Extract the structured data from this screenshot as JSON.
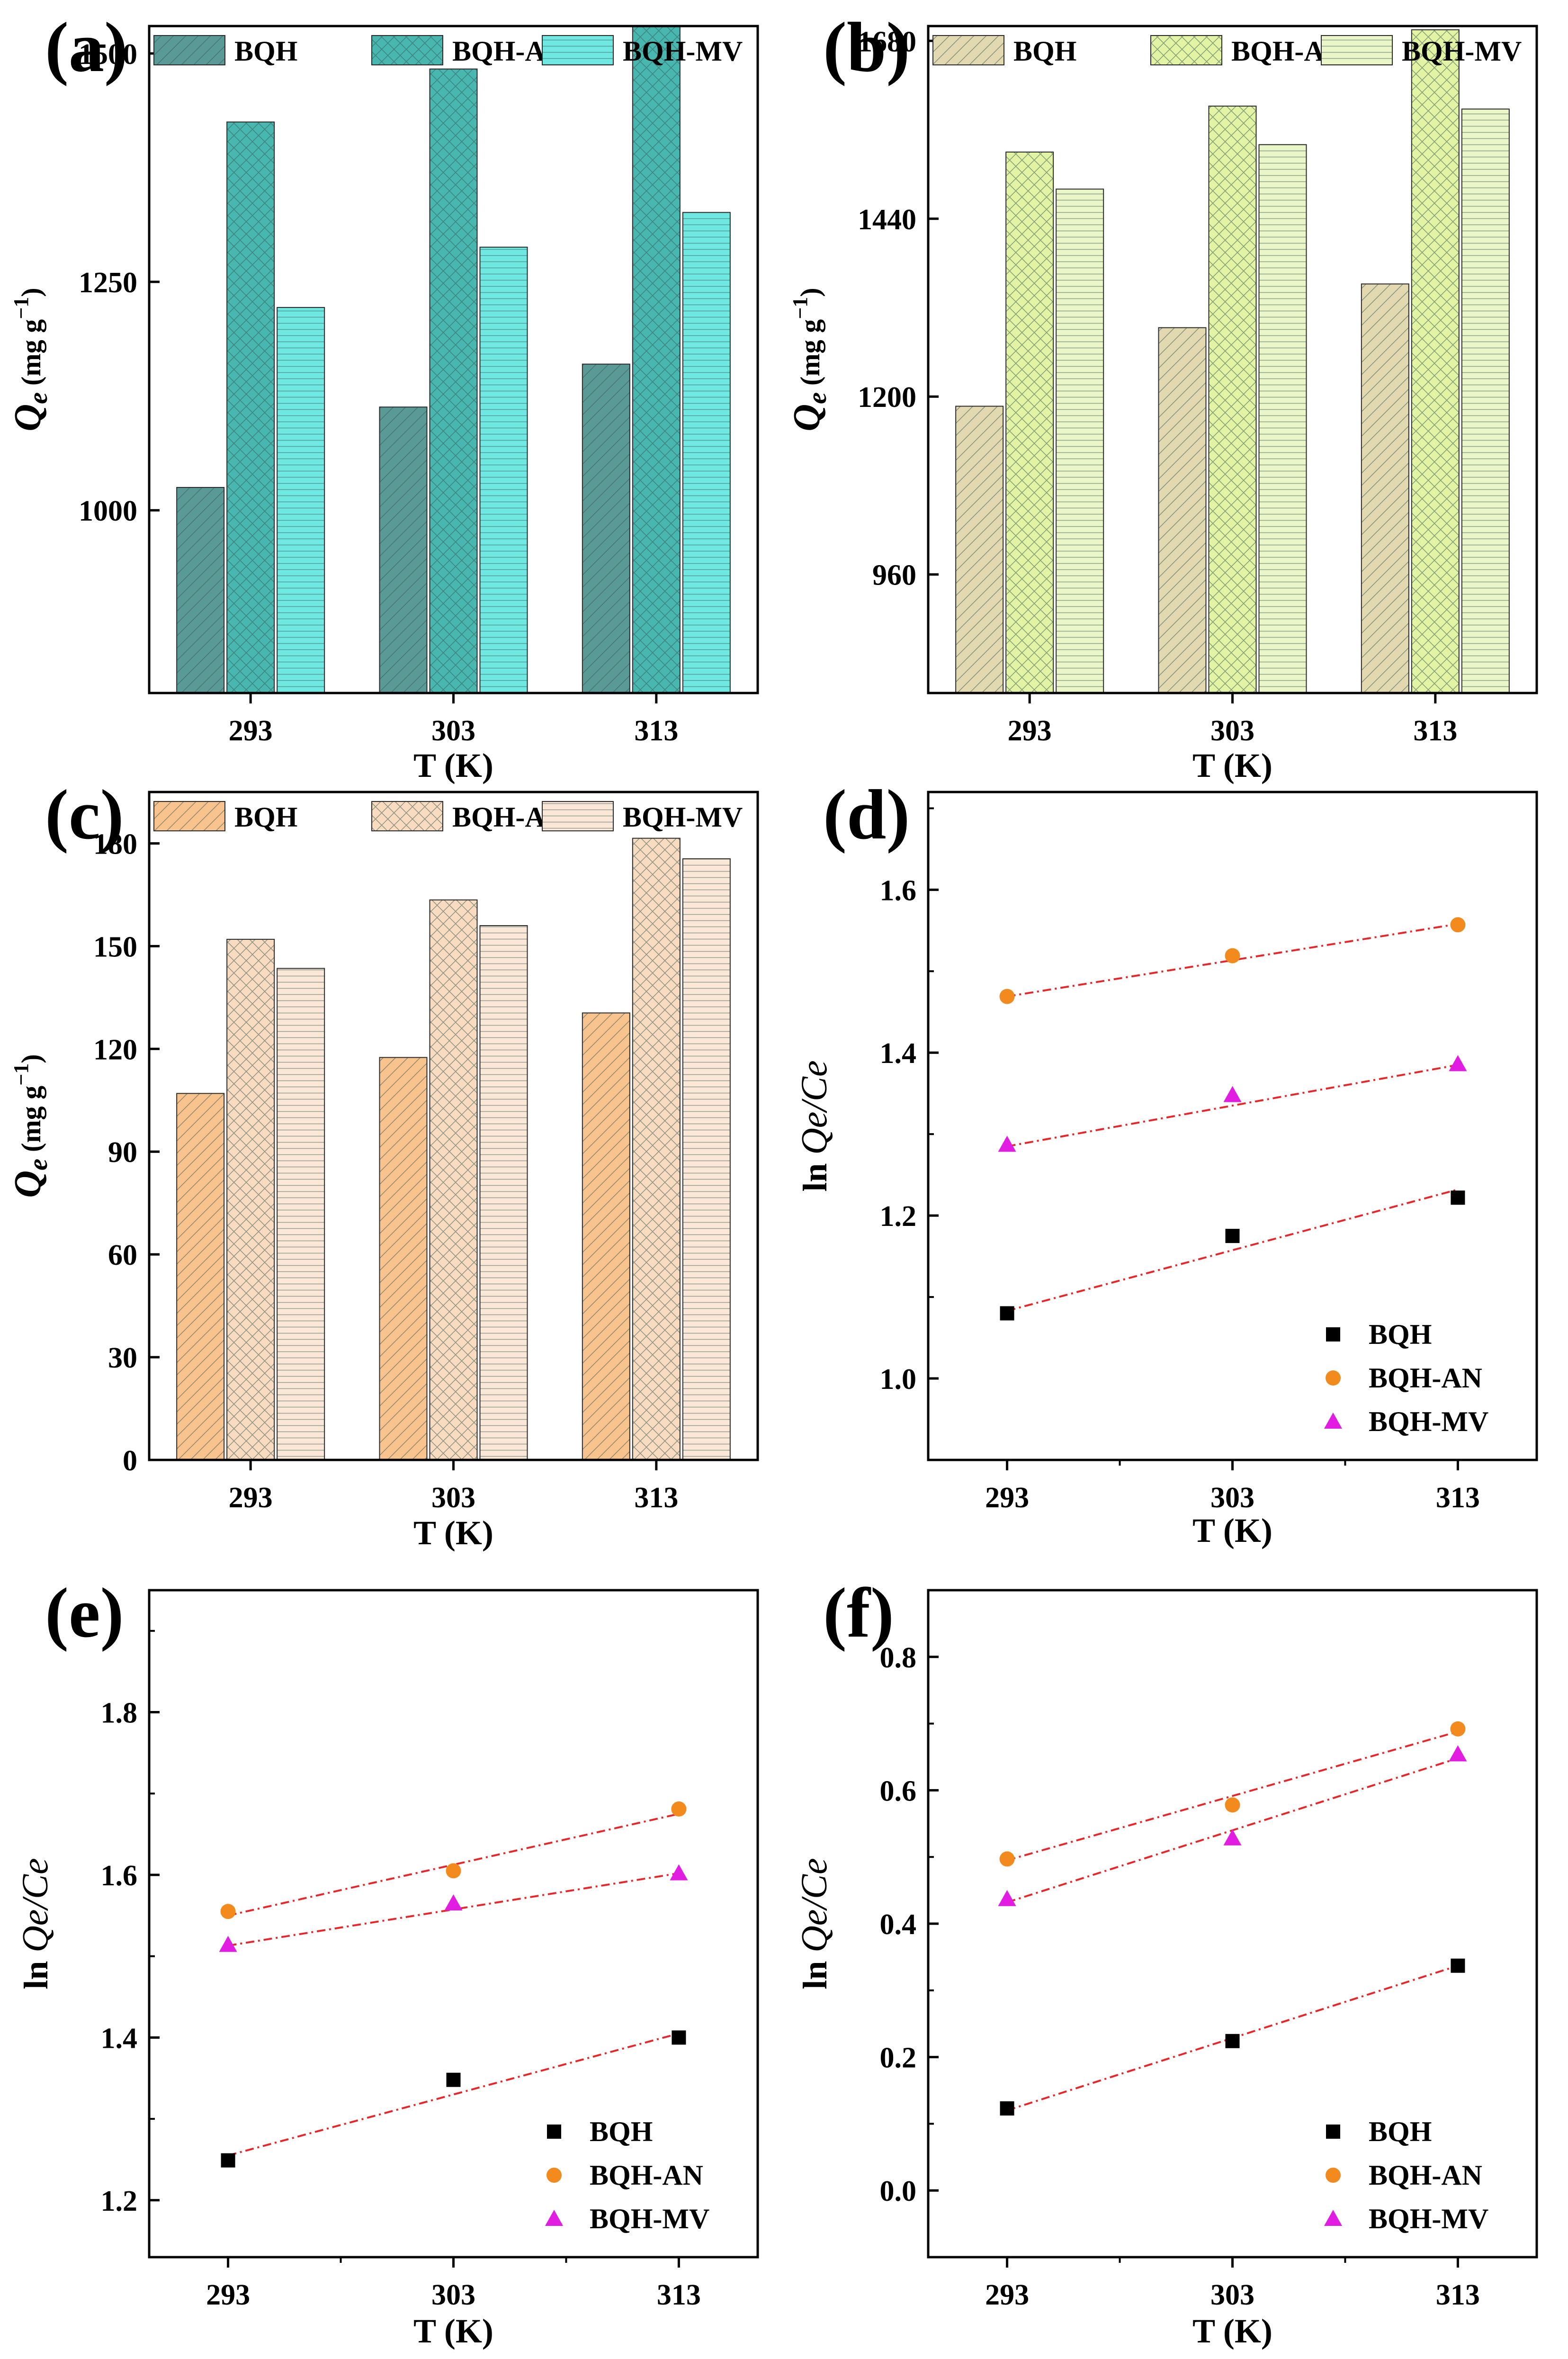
{
  "figure": "Six-panel adsorption thermodynamics figure",
  "chart_data": [
    {
      "id": "a",
      "type": "bar",
      "label": "(a)",
      "title": "",
      "xlabel": "T (K)",
      "ylabel": "Qe (mg g-1)",
      "ylabel_main": "Q",
      "ylabel_sub": "e",
      "ylabel_unit": "(mg g",
      "ylabel_exp": "−1",
      "ylabel_close": ")",
      "categories": [
        "293",
        "303",
        "313"
      ],
      "ylim": [
        800,
        1530
      ],
      "yticks": [
        1000,
        1250,
        1500
      ],
      "legend_position": "top",
      "series": [
        {
          "name": "BQH",
          "values": [
            1025,
            1113,
            1160
          ],
          "pattern": "diag",
          "fill": "#5a9a96"
        },
        {
          "name": "BQH-AN",
          "values": [
            1425,
            1483,
            1530
          ],
          "pattern": "cross",
          "fill": "#48b7b0"
        },
        {
          "name": "BQH-MV",
          "values": [
            1222,
            1288,
            1326
          ],
          "pattern": "horiz",
          "fill": "#6ee8e0"
        }
      ]
    },
    {
      "id": "b",
      "type": "bar",
      "label": "(b)",
      "title": "",
      "xlabel": "T (K)",
      "ylabel": "Qe (mg g-1)",
      "ylabel_main": "Q",
      "ylabel_sub": "e",
      "ylabel_unit": "(mg g",
      "ylabel_exp": "−1",
      "ylabel_close": ")",
      "categories": [
        "293",
        "303",
        "313"
      ],
      "ylim": [
        800,
        1700
      ],
      "yticks": [
        960,
        1200,
        1440,
        1680
      ],
      "legend_position": "top",
      "series": [
        {
          "name": "BQH",
          "values": [
            1187,
            1293,
            1352
          ],
          "pattern": "diag",
          "fill": "#e3d9b0"
        },
        {
          "name": "BQH-AN",
          "values": [
            1530,
            1592,
            1695
          ],
          "pattern": "cross",
          "fill": "#e3f3a4"
        },
        {
          "name": "BQH-MV",
          "values": [
            1480,
            1540,
            1588
          ],
          "pattern": "horiz",
          "fill": "#eaf6c8"
        }
      ]
    },
    {
      "id": "c",
      "type": "bar",
      "label": "(c)",
      "title": "",
      "xlabel": "T (K)",
      "ylabel": "Qe (mg g-1)",
      "ylabel_main": "Q",
      "ylabel_sub": "e",
      "ylabel_unit": "(mg g",
      "ylabel_exp": "−1",
      "ylabel_close": ")",
      "categories": [
        "293",
        "303",
        "313"
      ],
      "ylim": [
        0,
        195
      ],
      "yticks": [
        0,
        30,
        60,
        90,
        120,
        150,
        180
      ],
      "legend_position": "top",
      "series": [
        {
          "name": "BQH",
          "values": [
            107,
            117.5,
            130.5
          ],
          "pattern": "diag",
          "fill": "#f9c38e"
        },
        {
          "name": "BQH-AN",
          "values": [
            152,
            163.5,
            181.5
          ],
          "pattern": "cross",
          "fill": "#f9dcc0"
        },
        {
          "name": "BQH-MV",
          "values": [
            143.5,
            156,
            175.5
          ],
          "pattern": "horiz",
          "fill": "#fae7d6"
        }
      ]
    },
    {
      "id": "d",
      "type": "scatter",
      "label": "(d)",
      "title": "",
      "xlabel": "T (K)",
      "ylabel": "ln Qe/Ce",
      "ylabel_main": "ln ",
      "ylabel_italic": "Qe/Ce",
      "x": [
        293,
        303,
        313
      ],
      "xlim": [
        289.5,
        316.5
      ],
      "xticks": [
        293,
        303,
        313
      ],
      "ylim": [
        0.9,
        1.72
      ],
      "yticks": [
        1.0,
        1.2,
        1.4,
        1.6
      ],
      "legend_position": "bottom-right",
      "series": [
        {
          "name": "BQH",
          "values": [
            1.08,
            1.175,
            1.222
          ],
          "marker": "square",
          "color": "#000000",
          "fit": [
            1.083,
            1.232
          ]
        },
        {
          "name": "BQH-AN",
          "values": [
            1.469,
            1.519,
            1.557
          ],
          "marker": "circle",
          "color": "#f28a1e",
          "fit": [
            1.469,
            1.558
          ]
        },
        {
          "name": "BQH-MV",
          "values": [
            1.287,
            1.348,
            1.386
          ],
          "marker": "triangle",
          "color": "#e21de2",
          "fit": [
            1.285,
            1.385
          ]
        }
      ]
    },
    {
      "id": "e",
      "type": "scatter",
      "label": "(e)",
      "title": "",
      "xlabel": "T (K)",
      "ylabel": "ln Qe/Ce",
      "ylabel_main": "ln ",
      "ylabel_italic": "Qe/Ce",
      "x": [
        293,
        303,
        313
      ],
      "xlim": [
        289.5,
        316.5
      ],
      "xticks": [
        293,
        303,
        313
      ],
      "ylim": [
        1.13,
        1.95
      ],
      "yticks": [
        1.2,
        1.4,
        1.6,
        1.8
      ],
      "legend_position": "bottom-right",
      "series": [
        {
          "name": "BQH",
          "values": [
            1.249,
            1.348,
            1.4
          ],
          "marker": "square",
          "color": "#000000",
          "fit": [
            1.255,
            1.405
          ]
        },
        {
          "name": "BQH-AN",
          "values": [
            1.555,
            1.605,
            1.681
          ],
          "marker": "circle",
          "color": "#f28a1e",
          "fit": [
            1.55,
            1.675
          ]
        },
        {
          "name": "BQH-MV",
          "values": [
            1.514,
            1.565,
            1.602
          ],
          "marker": "triangle",
          "color": "#e21de2",
          "fit": [
            1.513,
            1.602
          ]
        }
      ]
    },
    {
      "id": "f",
      "type": "scatter",
      "label": "(f)",
      "title": "",
      "xlabel": "T (K)",
      "ylabel": "ln Qe/Ce",
      "ylabel_main": "ln ",
      "ylabel_italic": "Qe/Ce",
      "x": [
        293,
        303,
        313
      ],
      "xlim": [
        289.5,
        316.5
      ],
      "xticks": [
        293,
        303,
        313
      ],
      "ylim": [
        -0.1,
        0.9
      ],
      "yticks": [
        0.0,
        0.2,
        0.4,
        0.6,
        0.8
      ],
      "legend_position": "bottom-right",
      "series": [
        {
          "name": "BQH",
          "values": [
            0.123,
            0.224,
            0.337
          ],
          "marker": "square",
          "color": "#000000",
          "fit": [
            0.12,
            0.337
          ]
        },
        {
          "name": "BQH-AN",
          "values": [
            0.497,
            0.578,
            0.692
          ],
          "marker": "circle",
          "color": "#f28a1e",
          "fit": [
            0.495,
            0.688
          ]
        },
        {
          "name": "BQH-MV",
          "values": [
            0.437,
            0.528,
            0.654
          ],
          "marker": "triangle",
          "color": "#e21de2",
          "fit": [
            0.432,
            0.648
          ]
        }
      ]
    }
  ]
}
